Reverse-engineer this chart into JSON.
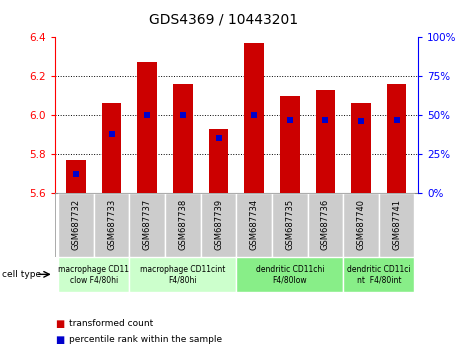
{
  "title": "GDS4369 / 10443201",
  "samples": [
    "GSM687732",
    "GSM687733",
    "GSM687737",
    "GSM687738",
    "GSM687739",
    "GSM687734",
    "GSM687735",
    "GSM687736",
    "GSM687740",
    "GSM687741"
  ],
  "transformed_counts": [
    5.77,
    6.06,
    6.27,
    6.16,
    5.93,
    6.37,
    6.1,
    6.13,
    6.06,
    6.16
  ],
  "percentile_ranks": [
    12,
    38,
    50,
    50,
    35,
    50,
    47,
    47,
    46,
    47
  ],
  "ylim_left": [
    5.6,
    6.4
  ],
  "ylim_right": [
    0,
    100
  ],
  "yticks_left": [
    5.6,
    5.8,
    6.0,
    6.2,
    6.4
  ],
  "yticks_right": [
    0,
    25,
    50,
    75,
    100
  ],
  "bar_color": "#cc0000",
  "dot_color": "#0000cc",
  "background_color": "#ffffff",
  "group_data": [
    {
      "indices": [
        0,
        1
      ],
      "label": "macrophage CD11\nclow F4/80hi",
      "color": "#ccffcc"
    },
    {
      "indices": [
        2,
        3,
        4
      ],
      "label": "macrophage CD11cint\nF4/80hi",
      "color": "#ccffcc"
    },
    {
      "indices": [
        5,
        6,
        7
      ],
      "label": "dendritic CD11chi\nF4/80low",
      "color": "#88ee88"
    },
    {
      "indices": [
        8,
        9
      ],
      "label": "dendritic CD11ci\nnt  F4/80int",
      "color": "#88ee88"
    }
  ],
  "cell_type_label": "cell type",
  "legend_bar_label": "transformed count",
  "legend_dot_label": "percentile rank within the sample",
  "sample_bg_color": "#cccccc",
  "sample_sep_color": "#ffffff"
}
